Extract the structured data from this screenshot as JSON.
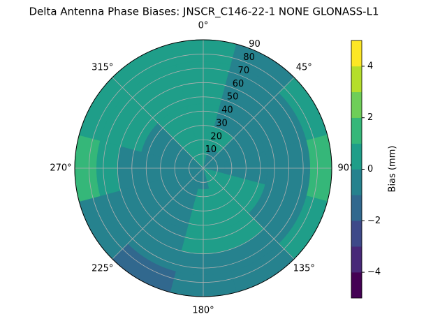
{
  "chart_data": {
    "type": "polar_contour",
    "title": "Delta Antenna Phase Biases: JNSCR_C146-22-1 NONE GLONASS-L1",
    "azimuth": [
      0,
      30,
      60,
      90,
      120,
      150,
      180,
      210,
      240,
      270,
      300,
      330
    ],
    "zenith": [
      7.5,
      22.5,
      37.5,
      52.5,
      67.5,
      82.5
    ],
    "z": [
      [
        0.3,
        -0.3,
        -0.5,
        -0.5,
        0.2,
        0.2,
        -0.4,
        -0.5,
        -0.5,
        -0.5,
        -0.3,
        0.2
      ],
      [
        0.4,
        0.3,
        -0.5,
        -0.4,
        0.3,
        0.5,
        0.4,
        -0.5,
        -0.5,
        -0.5,
        -0.4,
        0.3
      ],
      [
        0.5,
        -0.3,
        -0.6,
        -0.5,
        0.4,
        0.6,
        0.5,
        -0.4,
        -0.6,
        -0.6,
        -0.4,
        0.4
      ],
      [
        0.5,
        -0.4,
        -0.6,
        -0.5,
        -0.3,
        0.5,
        0.4,
        -0.5,
        -0.6,
        -0.5,
        0.3,
        0.5
      ],
      [
        0.6,
        -0.5,
        -0.5,
        -0.4,
        -0.5,
        -0.5,
        -0.5,
        -0.6,
        -0.5,
        0.3,
        0.5,
        0.6
      ],
      [
        0.5,
        -0.4,
        0.6,
        1.2,
        0.5,
        -0.6,
        -0.5,
        -1.2,
        -0.4,
        1.2,
        0.6,
        0.5
      ]
    ],
    "rlim": [
      0,
      90
    ],
    "rticks": [
      10,
      20,
      30,
      40,
      50,
      60,
      70,
      80,
      90
    ],
    "thetaticks": [
      {
        "value": 0,
        "label": "0°"
      },
      {
        "value": 45,
        "label": "45°"
      },
      {
        "value": 90,
        "label": "90°"
      },
      {
        "value": 135,
        "label": "135°"
      },
      {
        "value": 180,
        "label": "180°"
      },
      {
        "value": 225,
        "label": "225°"
      },
      {
        "value": 270,
        "label": "270°"
      },
      {
        "value": 315,
        "label": "315°"
      }
    ],
    "levels": [
      -5,
      -4,
      -3,
      -2,
      -1,
      0,
      1,
      2,
      3,
      4,
      5
    ],
    "colors": [
      "#440154",
      "#482878",
      "#3e4989",
      "#31688e",
      "#26828e",
      "#1f9e89",
      "#35b779",
      "#6ece58",
      "#b5de2b",
      "#fde725"
    ],
    "colorbar_label": "Bias (mm)",
    "colorbar_ticks": [
      {
        "value": -4,
        "label": "−4"
      },
      {
        "value": -2,
        "label": "−2"
      },
      0,
      2,
      4
    ]
  }
}
